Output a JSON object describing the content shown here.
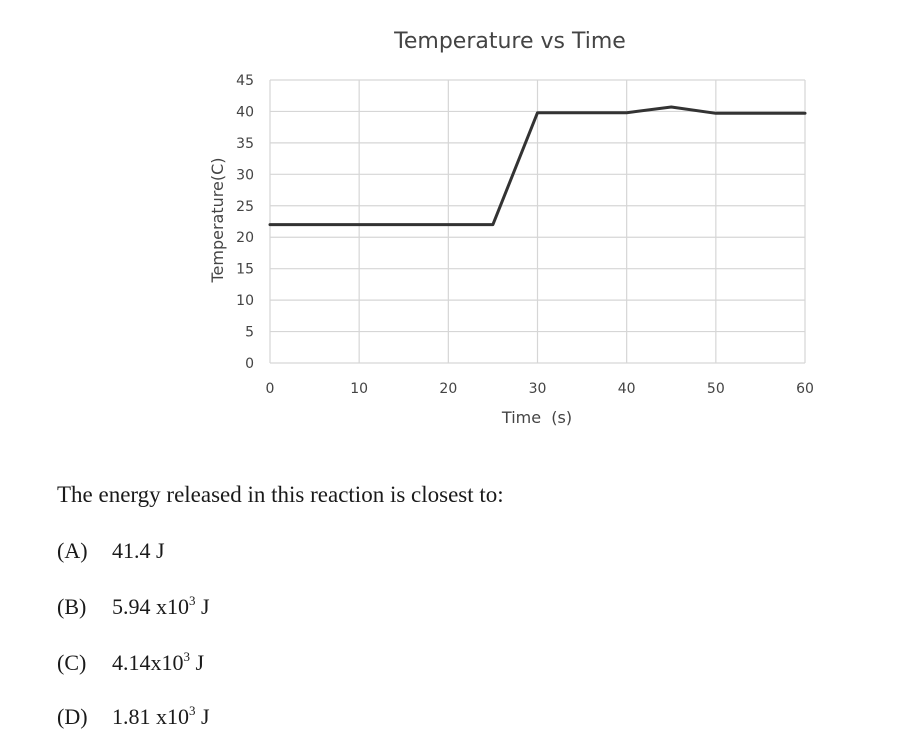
{
  "chart_data": {
    "type": "line",
    "title": "Temperature vs Time",
    "xlabel": "Time  (s)",
    "ylabel": "Temperature(C)",
    "xlim": [
      0,
      60
    ],
    "ylim": [
      0,
      45
    ],
    "x_ticks": [
      0,
      10,
      20,
      30,
      40,
      50,
      60
    ],
    "y_ticks": [
      0,
      5,
      10,
      15,
      20,
      25,
      30,
      35,
      40,
      45
    ],
    "grid": true,
    "legend": "none",
    "line_color": "#333333",
    "series": [
      {
        "x": [
          0,
          10,
          20,
          25,
          30,
          40,
          45,
          50,
          60
        ],
        "y": [
          22,
          22,
          22,
          22,
          39.8,
          39.8,
          40.7,
          39.7,
          39.7
        ]
      }
    ]
  },
  "question": {
    "text": "The energy released in this reaction is closest to:",
    "options": [
      {
        "letter": "(A)",
        "value": "41.4 J",
        "base": "",
        "exponent": "",
        "unit": ""
      },
      {
        "letter": "(B)",
        "value": "",
        "base": "5.94 x10",
        "exponent": "3",
        "unit": " J"
      },
      {
        "letter": "(C)",
        "value": "",
        "base": "4.14x10",
        "exponent": "3",
        "unit": " J"
      },
      {
        "letter": "(D)",
        "value": "",
        "base": "1.81 x10",
        "exponent": "3",
        "unit": " J"
      }
    ]
  }
}
